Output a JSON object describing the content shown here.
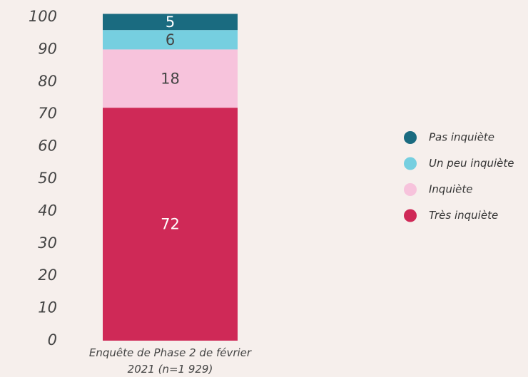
{
  "chart_data": {
    "type": "stacked_bar",
    "categories": [
      "Enquête de Phase 2 de février 2021 (n=1 929)"
    ],
    "series": [
      {
        "name": "Très inquiète",
        "color": "#cf2957",
        "values": [
          72
        ]
      },
      {
        "name": "Inquiète",
        "color": "#f7c3dc",
        "values": [
          18
        ]
      },
      {
        "name": "Un peu inquiète",
        "color": "#76cfe0",
        "values": [
          6
        ]
      },
      {
        "name": "Pas inquiète",
        "color": "#1a6b80",
        "values": [
          5
        ]
      }
    ],
    "ylim": [
      0,
      100
    ],
    "yticks": [
      0,
      10,
      20,
      30,
      40,
      50,
      60,
      70,
      80,
      90,
      100
    ],
    "legend": "right"
  }
}
